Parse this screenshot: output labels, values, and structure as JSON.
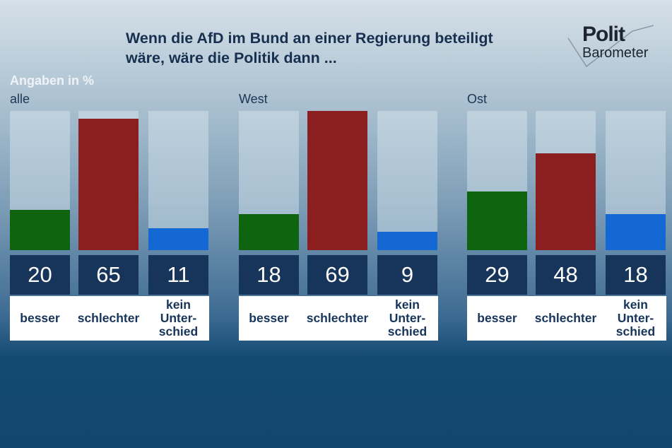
{
  "title_line1": "Wenn die AfD im Bund an einer Regierung beteiligt",
  "title_line2": "wäre, wäre die Politik dann ...",
  "logo": {
    "line1": "Polit",
    "line2": "Barometer"
  },
  "chart_data": {
    "type": "bar",
    "title": "Wenn die AfD im Bund an einer Regierung beteiligt wäre, wäre die Politik dann ...",
    "unit_label": "Angaben in %",
    "categories": [
      "besser",
      "schlechter",
      "kein Unter-schied"
    ],
    "category_lines": [
      [
        "besser"
      ],
      [
        "schlechter"
      ],
      [
        "kein",
        "Unter-",
        "schied"
      ]
    ],
    "colors": [
      "#0f640f",
      "#8b1e1e",
      "#1368d4"
    ],
    "ylim": [
      0,
      69
    ],
    "panels": [
      {
        "name": "alle",
        "values": [
          20,
          65,
          11
        ]
      },
      {
        "name": "West",
        "values": [
          18,
          69,
          9
        ]
      },
      {
        "name": "Ost",
        "values": [
          29,
          48,
          18
        ]
      }
    ]
  }
}
